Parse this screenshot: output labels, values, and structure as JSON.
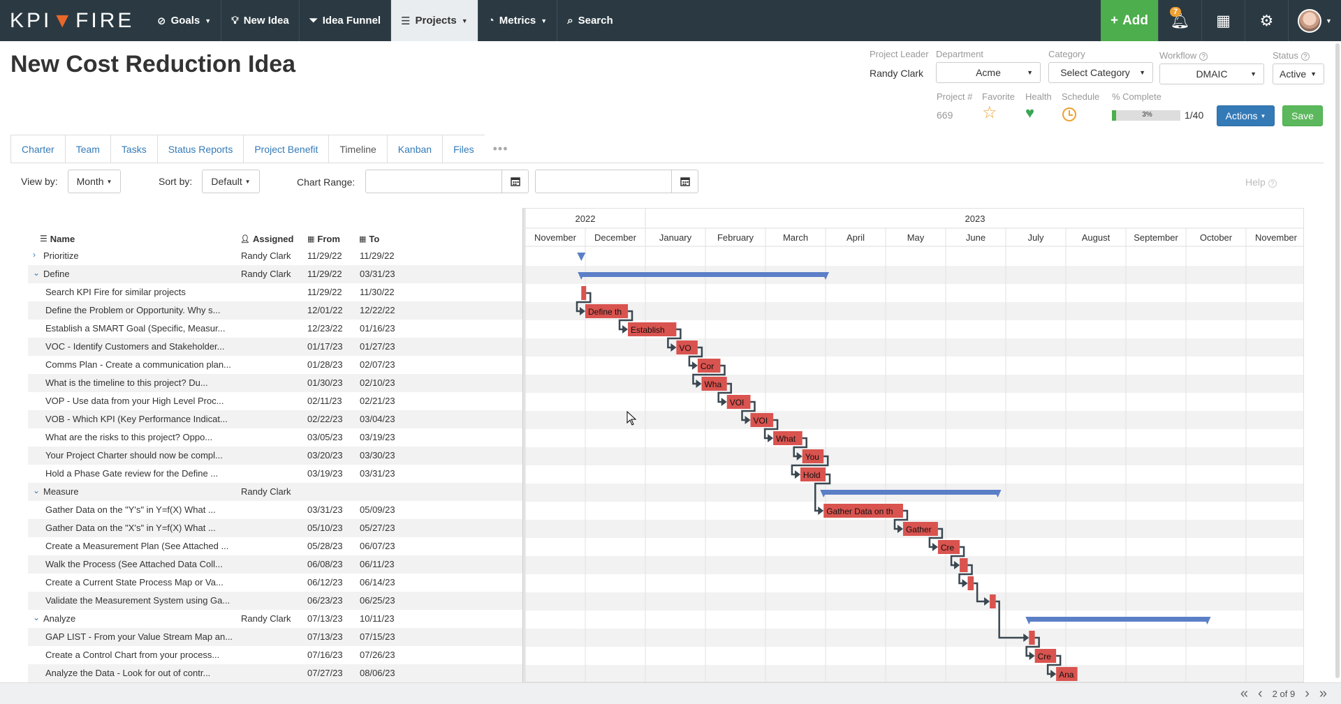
{
  "nav": {
    "logo_left": "KPI",
    "logo_right": "FIRE",
    "items": [
      {
        "label": "Goals",
        "icon": "compass-icon",
        "caret": true
      },
      {
        "label": "New Idea",
        "icon": "lightbulb-icon",
        "caret": false
      },
      {
        "label": "Idea Funnel",
        "icon": "funnel-icon",
        "caret": false
      },
      {
        "label": "Projects",
        "icon": "projects-icon",
        "caret": true
      },
      {
        "label": "Metrics",
        "icon": "gauge-icon",
        "caret": true
      },
      {
        "label": "Search",
        "icon": "search-icon",
        "caret": false
      }
    ],
    "add_label": "Add",
    "notifications_count": "7"
  },
  "header": {
    "title": "New Cost Reduction Idea",
    "project_leader_label": "Project Leader",
    "project_leader": "Randy Clark",
    "department_label": "Department",
    "department": "Acme",
    "category_label": "Category",
    "category": "Select Category",
    "workflow_label": "Workflow",
    "workflow": "DMAIC",
    "status_label": "Status",
    "status": "Active",
    "project_num_label": "Project #",
    "project_num": "669",
    "favorite_label": "Favorite",
    "health_label": "Health",
    "schedule_label": "Schedule",
    "complete_label": "% Complete",
    "complete_pct": "3%",
    "complete_fraction": 0.03,
    "tasks_ratio": "1/40",
    "actions_label": "Actions",
    "save_label": "Save"
  },
  "tabs": [
    "Charter",
    "Team",
    "Tasks",
    "Status Reports",
    "Project Benefit",
    "Timeline",
    "Kanban",
    "Files"
  ],
  "active_tab": "Timeline",
  "toolbar": {
    "view_by_label": "View by:",
    "view_by": "Month",
    "sort_by_label": "Sort by:",
    "sort_by": "Default",
    "chart_range_label": "Chart Range:",
    "help_label": "Help"
  },
  "grid": {
    "columns": {
      "name": "Name",
      "assigned": "Assigned",
      "from": "From",
      "to": "To"
    },
    "rows": [
      {
        "type": "phase",
        "expanded": false,
        "name": "Prioritize",
        "assigned": "Randy Clark",
        "from": "11/29/22",
        "to": "11/29/22"
      },
      {
        "type": "phase",
        "expanded": true,
        "name": "Define",
        "assigned": "Randy Clark",
        "from": "11/29/22",
        "to": "03/31/23"
      },
      {
        "type": "task",
        "name": "Search KPI Fire for similar projects",
        "assigned": "",
        "from": "11/29/22",
        "to": "11/30/22",
        "bar": "",
        "start": "2022-11-29",
        "end": "2022-11-30"
      },
      {
        "type": "task",
        "name": "Define the Problem or Opportunity. Why s...",
        "assigned": "",
        "from": "12/01/22",
        "to": "12/22/22",
        "bar": "Define th",
        "start": "2022-12-01",
        "end": "2022-12-22"
      },
      {
        "type": "task",
        "name": "Establish a SMART Goal (Specific, Measur...",
        "assigned": "",
        "from": "12/23/22",
        "to": "01/16/23",
        "bar": "Establish",
        "start": "2022-12-23",
        "end": "2023-01-16"
      },
      {
        "type": "task",
        "name": "VOC - Identify Customers and Stakeholder...",
        "assigned": "",
        "from": "01/17/23",
        "to": "01/27/23",
        "bar": "VO",
        "start": "2023-01-17",
        "end": "2023-01-27"
      },
      {
        "type": "task",
        "name": "Comms Plan - Create a communication plan...",
        "assigned": "",
        "from": "01/28/23",
        "to": "02/07/23",
        "bar": "Cor",
        "start": "2023-01-28",
        "end": "2023-02-07"
      },
      {
        "type": "task",
        "name": "What is the timeline to this project? Du...",
        "assigned": "",
        "from": "01/30/23",
        "to": "02/10/23",
        "bar": "Wha",
        "start": "2023-01-30",
        "end": "2023-02-10"
      },
      {
        "type": "task",
        "name": "VOP - Use data from your High Level Proc...",
        "assigned": "",
        "from": "02/11/23",
        "to": "02/21/23",
        "bar": "VOI",
        "start": "2023-02-11",
        "end": "2023-02-21"
      },
      {
        "type": "task",
        "name": "VOB - Which KPI (Key Performance Indicat...",
        "assigned": "",
        "from": "02/22/23",
        "to": "03/04/23",
        "bar": "VOI",
        "start": "2023-02-22",
        "end": "2023-03-04"
      },
      {
        "type": "task",
        "name": "What are the risks to this project? Oppo...",
        "assigned": "",
        "from": "03/05/23",
        "to": "03/19/23",
        "bar": "What",
        "start": "2023-03-05",
        "end": "2023-03-19"
      },
      {
        "type": "task",
        "name": "Your Project Charter should now be compl...",
        "assigned": "",
        "from": "03/20/23",
        "to": "03/30/23",
        "bar": "You",
        "start": "2023-03-20",
        "end": "2023-03-30"
      },
      {
        "type": "task",
        "name": "Hold a Phase Gate review for the Define ...",
        "assigned": "",
        "from": "03/19/23",
        "to": "03/31/23",
        "bar": "Hold",
        "start": "2023-03-19",
        "end": "2023-03-31"
      },
      {
        "type": "phase",
        "expanded": true,
        "name": "Measure",
        "assigned": "Randy Clark",
        "from": "",
        "to": "",
        "start": "2023-03-31",
        "end": "2023-06-26"
      },
      {
        "type": "task",
        "name": "Gather Data on the \"Y's\" in Y=f(X) What ...",
        "assigned": "",
        "from": "03/31/23",
        "to": "05/09/23",
        "bar": "Gather Data on th",
        "start": "2023-03-31",
        "end": "2023-05-09"
      },
      {
        "type": "task",
        "name": "Gather Data on the \"X's\" in Y=f(X) What ...",
        "assigned": "",
        "from": "05/10/23",
        "to": "05/27/23",
        "bar": "Gather",
        "start": "2023-05-10",
        "end": "2023-05-27"
      },
      {
        "type": "task",
        "name": "Create a Measurement Plan (See Attached ...",
        "assigned": "",
        "from": "05/28/23",
        "to": "06/07/23",
        "bar": "Cre",
        "start": "2023-05-28",
        "end": "2023-06-07"
      },
      {
        "type": "task",
        "name": "Walk the Process (See Attached Data Coll...",
        "assigned": "",
        "from": "06/08/23",
        "to": "06/11/23",
        "bar": "",
        "start": "2023-06-08",
        "end": "2023-06-11"
      },
      {
        "type": "task",
        "name": "Create a Current State Process Map or Va...",
        "assigned": "",
        "from": "06/12/23",
        "to": "06/14/23",
        "bar": "",
        "start": "2023-06-12",
        "end": "2023-06-14"
      },
      {
        "type": "task",
        "name": "Validate the Measurement System using Ga...",
        "assigned": "",
        "from": "06/23/23",
        "to": "06/25/23",
        "bar": "",
        "start": "2023-06-23",
        "end": "2023-06-25"
      },
      {
        "type": "phase",
        "expanded": true,
        "name": "Analyze",
        "assigned": "Randy Clark",
        "from": "07/13/23",
        "to": "10/11/23"
      },
      {
        "type": "task",
        "name": "GAP LIST - From your Value Stream Map an...",
        "assigned": "",
        "from": "07/13/23",
        "to": "07/15/23",
        "bar": "",
        "start": "2023-07-13",
        "end": "2023-07-15"
      },
      {
        "type": "task",
        "name": "Create a Control Chart from your process...",
        "assigned": "",
        "from": "07/16/23",
        "to": "07/26/23",
        "bar": "Cre",
        "start": "2023-07-16",
        "end": "2023-07-26"
      },
      {
        "type": "task",
        "name": "Analyze the Data - Look for out of contr...",
        "assigned": "",
        "from": "07/27/23",
        "to": "08/06/23",
        "bar": "Ana",
        "start": "2023-07-27",
        "end": "2023-08-06"
      }
    ]
  },
  "timeline": {
    "years": [
      {
        "label": "2022",
        "start": "2022-11-01",
        "end": "2022-12-31"
      },
      {
        "label": "2023",
        "start": "2023-01-01",
        "end": "2023-11-30"
      }
    ],
    "months": [
      "November",
      "December",
      "January",
      "February",
      "March",
      "April",
      "May",
      "June",
      "July",
      "August",
      "September",
      "October",
      "November"
    ],
    "range_start": "2022-11-01",
    "range_end": "2023-11-30"
  },
  "pager": {
    "label": "2 of 9"
  },
  "colors": {
    "task_bar": "#d9534f",
    "phase_bar": "#5b7fc7",
    "link": "#3a4750"
  }
}
